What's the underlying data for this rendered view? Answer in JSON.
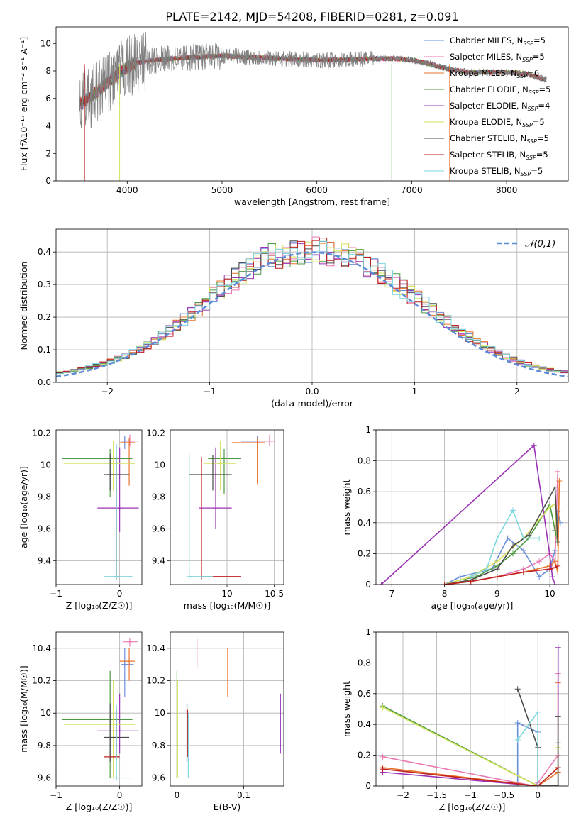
{
  "title": "PLATE=2142, MJD=54208, FIBERID=0281, z=0.091",
  "colors": {
    "Chabrier MILES": "#6a8fd9",
    "Salpeter MILES": "#e879b3",
    "Kroupa MILES": "#e8742c",
    "Chabrier ELODIE": "#4c9a42",
    "Salpeter ELODIE": "#9b33b5",
    "Kroupa ELODIE": "#d4e25a",
    "Chabrier STELIB": "#4a4a4a",
    "Salpeter STELIB": "#c01f1f",
    "Kroupa STELIB": "#7fd6dd",
    "spectrum": "#808080",
    "normal_curve": "#5a8ad8"
  },
  "chart_data": [
    {
      "id": "spectrum",
      "type": "line",
      "title": "PLATE=2142, MJD=54208, FIBERID=0281, z=0.091",
      "xlabel": "wavelength [Angstrom, rest frame]",
      "ylabel": "Flux [fλ10⁻¹⁷ erg cm⁻² s⁻¹ A⁻¹]",
      "xlim": [
        3250,
        8650
      ],
      "ylim": [
        0,
        11.2
      ],
      "xticks": [
        4000,
        5000,
        6000,
        7000,
        8000
      ],
      "yticks": [
        0,
        2,
        4,
        6,
        8,
        10
      ],
      "legend_position": "right",
      "continuum": {
        "x": [
          3500,
          3600,
          3700,
          3800,
          3900,
          4000,
          4100,
          4200,
          4300,
          4500,
          4700,
          5000,
          5300,
          5600,
          6000,
          6300,
          6600,
          6800,
          7000,
          7200,
          7400,
          7600,
          7800,
          8000,
          8200,
          8400
        ],
        "y": [
          5.6,
          6.0,
          6.6,
          7.2,
          7.8,
          8.3,
          8.6,
          8.7,
          8.8,
          8.9,
          9.0,
          9.1,
          9.0,
          8.9,
          8.8,
          8.8,
          8.9,
          8.9,
          8.8,
          8.5,
          8.1,
          7.9,
          7.9,
          7.9,
          7.8,
          7.4
        ]
      },
      "series": [
        {
          "name": "Chabrier MILES, N_SSP=5"
        },
        {
          "name": "Salpeter MILES, N_SSP=5"
        },
        {
          "name": "Kroupa MILES, N_SSP=6"
        },
        {
          "name": "Chabrier ELODIE, N_SSP=5"
        },
        {
          "name": "Salpeter ELODIE, N_SSP=4"
        },
        {
          "name": "Kroupa ELODIE, N_SSP=5"
        },
        {
          "name": "Chabrier STELIB, N_SSP=5"
        },
        {
          "name": "Salpeter STELIB, N_SSP=5"
        },
        {
          "name": "Kroupa STELIB, N_SSP=5"
        }
      ]
    },
    {
      "id": "residuals",
      "type": "line",
      "xlabel": "(data-model)/error",
      "ylabel": "Normed distribution",
      "xlim": [
        -2.5,
        2.5
      ],
      "ylim": [
        0,
        0.47
      ],
      "xticks": [
        -2,
        -1,
        0,
        1,
        2
      ],
      "yticks": [
        0.0,
        0.1,
        0.2,
        0.3,
        0.4
      ],
      "legend": "𝒩(0,1)",
      "legend_position": "top-right",
      "bin_width": 0.1,
      "hist_base": [
        0.03,
        0.033,
        0.037,
        0.042,
        0.047,
        0.052,
        0.058,
        0.065,
        0.073,
        0.082,
        0.092,
        0.103,
        0.115,
        0.128,
        0.142,
        0.158,
        0.175,
        0.192,
        0.21,
        0.228,
        0.246,
        0.265,
        0.283,
        0.301,
        0.318,
        0.334,
        0.349,
        0.362,
        0.374,
        0.384,
        0.392,
        0.397,
        0.4,
        0.402,
        0.403,
        0.403,
        0.401,
        0.398,
        0.393,
        0.386,
        0.378,
        0.368,
        0.357,
        0.345,
        0.332,
        0.318,
        0.302,
        0.286,
        0.27,
        0.253,
        0.236,
        0.219,
        0.202,
        0.186,
        0.17,
        0.155,
        0.14,
        0.126,
        0.113,
        0.101,
        0.09,
        0.08,
        0.071,
        0.063,
        0.056,
        0.05,
        0.044,
        0.039,
        0.035,
        0.032
      ]
    },
    {
      "id": "age_vs_Z",
      "type": "scatter",
      "xlabel": "Z [log₁₀(Z/Z☉)]",
      "ylabel": "age  [log₁₀(age/yr)]",
      "xlim": [
        -1.0,
        0.35
      ],
      "ylim": [
        9.25,
        10.22
      ],
      "xticks": [
        -1,
        0
      ],
      "yticks": [
        9.4,
        9.6,
        9.8,
        10.0,
        10.2
      ],
      "points": [
        {
          "s": 0,
          "x": 0.08,
          "xe": [
            0.03,
            0.22
          ],
          "y": 10.15,
          "ye": [
            10.1,
            10.18
          ]
        },
        {
          "s": 1,
          "x": 0.16,
          "xe": [
            0.05,
            0.28
          ],
          "y": 10.15,
          "ye": [
            10.12,
            10.19
          ]
        },
        {
          "s": 2,
          "x": 0.15,
          "xe": [
            0.0,
            0.25
          ],
          "y": 10.14,
          "ye": [
            9.87,
            10.17
          ]
        },
        {
          "s": 3,
          "x": -0.15,
          "xe": [
            -0.9,
            0.2
          ],
          "y": 10.04,
          "ye": [
            9.8,
            10.1
          ]
        },
        {
          "s": 4,
          "x": 0.0,
          "xe": [
            -0.35,
            0.3
          ],
          "y": 9.73,
          "ye": [
            9.58,
            10.11
          ]
        },
        {
          "s": 5,
          "x": -0.1,
          "xe": [
            -0.88,
            0.25
          ],
          "y": 10.01,
          "ye": [
            9.84,
            10.15
          ]
        },
        {
          "s": 6,
          "x": -0.15,
          "xe": [
            -0.25,
            0.15
          ],
          "y": 9.94,
          "ye": [
            9.84,
            10.07
          ]
        },
        {
          "s": 7,
          "x": -0.05,
          "xe": [
            -0.08,
            0.0
          ],
          "y": 9.3,
          "ye": [
            9.3,
            10.05
          ]
        },
        {
          "s": 8,
          "x": -0.05,
          "xe": [
            -0.25,
            0.2
          ],
          "y": 9.3,
          "ye": [
            9.3,
            10.13
          ]
        }
      ]
    },
    {
      "id": "age_vs_mass",
      "type": "scatter",
      "xlabel": "mass [log₁₀(M/M☉)]",
      "ylabel": "",
      "xlim": [
        9.4,
        10.6
      ],
      "ylim": [
        9.25,
        10.22
      ],
      "xticks": [
        10.0,
        10.5
      ],
      "yticks": [
        9.4,
        9.6,
        9.8,
        10.0,
        10.2
      ],
      "points": [
        {
          "s": 0,
          "x": 10.32,
          "xe": [
            10.15,
            10.35
          ],
          "y": 10.15,
          "ye": [
            10.09,
            10.18
          ]
        },
        {
          "s": 1,
          "x": 10.45,
          "xe": [
            10.35,
            10.5
          ],
          "y": 10.15,
          "ye": [
            10.12,
            10.19
          ]
        },
        {
          "s": 2,
          "x": 10.32,
          "xe": [
            10.05,
            10.4
          ],
          "y": 10.14,
          "ye": [
            9.88,
            10.17
          ]
        },
        {
          "s": 3,
          "x": 9.97,
          "xe": [
            9.8,
            10.15
          ],
          "y": 10.04,
          "ye": [
            9.82,
            10.1
          ]
        },
        {
          "s": 4,
          "x": 9.88,
          "xe": [
            9.7,
            10.05
          ],
          "y": 9.73,
          "ye": [
            9.6,
            10.11
          ]
        },
        {
          "s": 5,
          "x": 9.93,
          "xe": [
            9.75,
            10.1
          ],
          "y": 10.01,
          "ye": [
            9.84,
            10.15
          ]
        },
        {
          "s": 6,
          "x": 9.85,
          "xe": [
            9.6,
            10.05
          ],
          "y": 9.94,
          "ye": [
            9.84,
            10.06
          ]
        },
        {
          "s": 7,
          "x": 9.73,
          "xe": [
            9.73,
            10.15
          ],
          "y": 9.3,
          "ye": [
            9.3,
            10.05
          ]
        },
        {
          "s": 8,
          "x": 9.6,
          "xe": [
            9.6,
            9.85
          ],
          "y": 9.3,
          "ye": [
            9.3,
            10.07
          ]
        }
      ]
    },
    {
      "id": "weight_vs_age",
      "type": "line",
      "xlabel": "age  [log₁₀(age/yr)]",
      "ylabel": "mass weight",
      "xlim": [
        6.7,
        10.35
      ],
      "ylim": [
        0,
        1.0
      ],
      "xticks": [
        7,
        8,
        9,
        10
      ],
      "yticks": [
        0.0,
        0.2,
        0.4,
        0.6,
        0.8,
        1.0
      ],
      "series": [
        {
          "s": 0,
          "x": [
            8.0,
            8.3,
            8.9,
            9.2,
            9.5,
            9.8,
            10.0,
            10.1,
            10.15,
            10.2
          ],
          "y": [
            0.0,
            0.05,
            0.1,
            0.3,
            0.22,
            0.05,
            0.1,
            0.22,
            0.47,
            0.4
          ]
        },
        {
          "s": 1,
          "x": [
            8.0,
            8.5,
            9.0,
            9.5,
            9.8,
            10.0,
            10.1,
            10.15
          ],
          "y": [
            0.0,
            0.02,
            0.05,
            0.1,
            0.15,
            0.2,
            0.15,
            0.73
          ]
        },
        {
          "s": 2,
          "x": [
            8.0,
            8.5,
            9.0,
            9.5,
            10.0,
            10.1,
            10.15,
            10.18
          ],
          "y": [
            0.0,
            0.02,
            0.05,
            0.08,
            0.12,
            0.15,
            0.08,
            0.67
          ]
        },
        {
          "s": 3,
          "x": [
            8.0,
            8.3,
            8.6,
            9.0,
            9.3,
            9.6,
            10.0,
            10.1,
            10.15
          ],
          "y": [
            0.0,
            0.03,
            0.05,
            0.12,
            0.2,
            0.3,
            0.52,
            0.35,
            0.28
          ]
        },
        {
          "s": 4,
          "x": [
            6.8,
            9.7,
            10.0,
            10.05,
            10.1
          ],
          "y": [
            0.0,
            0.9,
            0.19,
            0.05,
            0.0
          ]
        },
        {
          "s": 5,
          "x": [
            8.0,
            8.5,
            9.0,
            9.5,
            10.0,
            10.1,
            10.15
          ],
          "y": [
            0.0,
            0.05,
            0.15,
            0.3,
            0.5,
            0.52,
            0.25
          ]
        },
        {
          "s": 6,
          "x": [
            8.0,
            8.5,
            9.0,
            9.3,
            9.6,
            10.1,
            10.15
          ],
          "y": [
            0.0,
            0.03,
            0.1,
            0.25,
            0.32,
            0.63,
            0.27
          ]
        },
        {
          "s": 7,
          "x": [
            8.0,
            8.5,
            9.0,
            9.5,
            10.0,
            10.1,
            10.15
          ],
          "y": [
            0.0,
            0.02,
            0.05,
            0.08,
            0.1,
            0.11,
            0.12
          ]
        },
        {
          "s": 8,
          "x": [
            8.5,
            8.8,
            9.0,
            9.3,
            9.5,
            9.8
          ],
          "y": [
            0.05,
            0.1,
            0.3,
            0.48,
            0.3,
            0.3
          ]
        }
      ]
    },
    {
      "id": "mass_vs_Z",
      "type": "scatter",
      "xlabel": "Z [log₁₀(Z/Z☉)]",
      "ylabel": "mass [log₁₀(M/M☉)]",
      "xlim": [
        -1.0,
        0.35
      ],
      "ylim": [
        9.55,
        10.5
      ],
      "xticks": [
        -1,
        0
      ],
      "yticks": [
        9.6,
        9.8,
        10.0,
        10.2,
        10.4
      ],
      "points": [
        {
          "s": 0,
          "x": 0.08,
          "xe": [
            0.03,
            0.22
          ],
          "y": 10.3,
          "ye": [
            10.1,
            10.4
          ]
        },
        {
          "s": 1,
          "x": 0.16,
          "xe": [
            0.05,
            0.28
          ],
          "y": 10.44,
          "ye": [
            10.41,
            10.46
          ]
        },
        {
          "s": 2,
          "x": 0.15,
          "xe": [
            0.0,
            0.25
          ],
          "y": 10.32,
          "ye": [
            10.2,
            10.4
          ]
        },
        {
          "s": 3,
          "x": -0.15,
          "xe": [
            -0.9,
            0.2
          ],
          "y": 9.96,
          "ye": [
            9.6,
            10.26
          ]
        },
        {
          "s": 4,
          "x": 0.0,
          "xe": [
            -0.35,
            0.3
          ],
          "y": 9.89,
          "ye": [
            9.75,
            10.12
          ]
        },
        {
          "s": 5,
          "x": -0.1,
          "xe": [
            -0.88,
            0.25
          ],
          "y": 9.93,
          "ye": [
            9.6,
            10.2
          ]
        },
        {
          "s": 6,
          "x": -0.15,
          "xe": [
            -0.25,
            0.15
          ],
          "y": 9.85,
          "ye": [
            9.7,
            10.06
          ]
        },
        {
          "s": 7,
          "x": -0.05,
          "xe": [
            -0.25,
            0.0
          ],
          "y": 9.73,
          "ye": [
            9.73,
            10.02
          ]
        },
        {
          "s": 8,
          "x": -0.05,
          "xe": [
            -0.25,
            0.2
          ],
          "y": 9.6,
          "ye": [
            9.6,
            10.05
          ]
        }
      ]
    },
    {
      "id": "mass_vs_EBV",
      "type": "scatter",
      "xlabel": "E(B-V)",
      "ylabel": "",
      "xlim": [
        -0.01,
        0.16
      ],
      "ylim": [
        9.55,
        10.5
      ],
      "xticks": [
        0.0,
        0.1
      ],
      "yticks": [
        9.6,
        9.8,
        10.0,
        10.2,
        10.4
      ],
      "points": [
        {
          "s": 0,
          "x": 0.018,
          "ye": [
            9.6,
            10.0
          ]
        },
        {
          "s": 1,
          "x": 0.03,
          "ye": [
            10.28,
            10.46
          ]
        },
        {
          "s": 2,
          "x": 0.076,
          "ye": [
            10.1,
            10.4
          ]
        },
        {
          "s": 3,
          "x": 0.0,
          "ye": [
            9.6,
            10.26
          ]
        },
        {
          "s": 4,
          "x": 0.155,
          "ye": [
            9.75,
            10.12
          ]
        },
        {
          "s": 5,
          "x": 0.001,
          "ye": [
            9.6,
            10.2
          ]
        },
        {
          "s": 6,
          "x": 0.015,
          "ye": [
            9.7,
            10.06
          ]
        },
        {
          "s": 7,
          "x": 0.016,
          "ye": [
            9.73,
            10.02
          ]
        },
        {
          "s": 8,
          "x": 0.017,
          "ye": [
            9.6,
            10.0
          ]
        }
      ]
    },
    {
      "id": "weight_vs_Z",
      "type": "line",
      "xlabel": "Z [log₁₀(Z/Z☉)]",
      "ylabel": "mass weight",
      "xlim": [
        -2.4,
        0.45
      ],
      "ylim": [
        0,
        1.0
      ],
      "xticks": [
        -2.0,
        -1.5,
        -1.0,
        -0.5,
        0.0
      ],
      "yticks": [
        0.0,
        0.2,
        0.4,
        0.6,
        0.8,
        1.0
      ],
      "series": [
        {
          "s": 0,
          "x": [
            -0.3,
            -0.3,
            0.0,
            0.0,
            0.3
          ],
          "y": [
            0.0,
            0.41,
            0.35,
            0.0,
            0.0
          ]
        },
        {
          "s": 1,
          "x": [
            -2.3,
            -0.05,
            0.0,
            0.3,
            0.3
          ],
          "y": [
            0.19,
            0.0,
            0.02,
            0.2,
            0.73
          ]
        },
        {
          "s": 2,
          "x": [
            -2.3,
            0.0,
            0.3,
            0.3
          ],
          "y": [
            0.12,
            0.0,
            0.09,
            0.67
          ]
        },
        {
          "s": 3,
          "x": [
            -2.3,
            0.0,
            0.3,
            0.3
          ],
          "y": [
            0.52,
            0.0,
            0.0,
            0.28
          ]
        },
        {
          "s": 4,
          "x": [
            -2.3,
            0.0,
            0.3,
            0.3
          ],
          "y": [
            0.09,
            0.0,
            0.0,
            0.9
          ]
        },
        {
          "s": 5,
          "x": [
            -2.3,
            0.0,
            0.3,
            0.3
          ],
          "y": [
            0.51,
            0.0,
            0.0,
            0.25
          ]
        },
        {
          "s": 6,
          "x": [
            -0.3,
            0.0,
            0.0,
            0.3,
            0.3
          ],
          "y": [
            0.63,
            0.25,
            0.0,
            0.0,
            0.45
          ]
        },
        {
          "s": 7,
          "x": [
            -2.3,
            0.0,
            0.3
          ],
          "y": [
            0.11,
            0.0,
            0.12
          ]
        },
        {
          "s": 8,
          "x": [
            -0.3,
            0.0,
            0.0
          ],
          "y": [
            0.3,
            0.48,
            0.0
          ]
        }
      ]
    }
  ]
}
